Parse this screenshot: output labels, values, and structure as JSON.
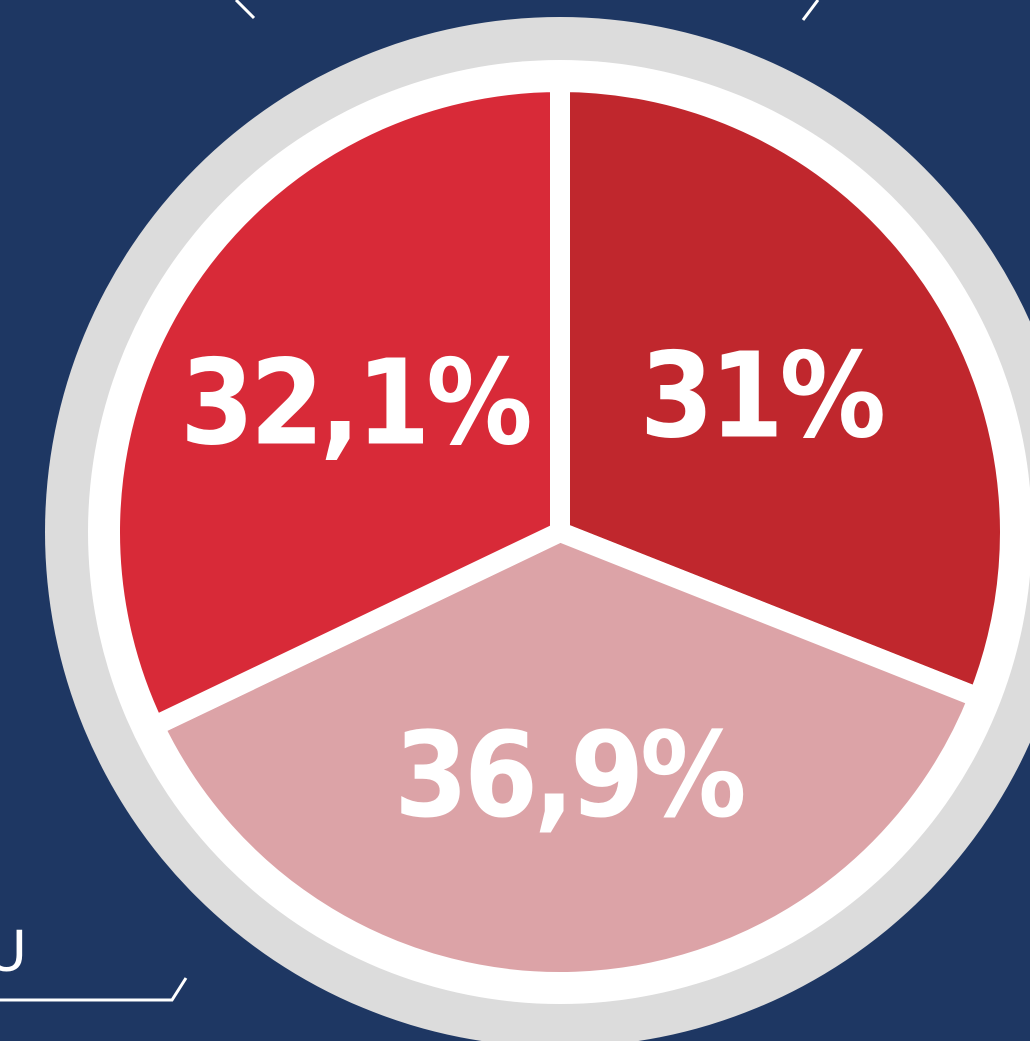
{
  "chart_data": {
    "type": "pie",
    "categories": [
      null,
      null,
      null
    ],
    "values": [
      31,
      36.9,
      32.1
    ],
    "value_labels": [
      "31%",
      "36,9%",
      "32,1%"
    ],
    "colors": [
      "#c0272d",
      "#dca3a7",
      "#d82a38"
    ],
    "start_angle": 0,
    "direction": "clockwise",
    "annotations": [
      "U"
    ]
  }
}
